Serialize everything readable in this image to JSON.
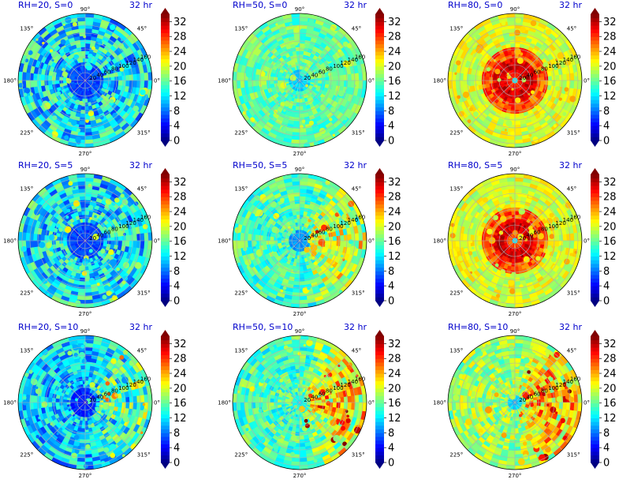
{
  "panels": [
    {
      "title": "RH=20, S=0",
      "time": "32 hr",
      "base": 12,
      "core": 5,
      "coreRadius": 0.15,
      "ringLevel": 0,
      "ringWidth": 0,
      "spread": 6,
      "eastBoost": 0
    },
    {
      "title": "RH=50, S=0",
      "time": "32 hr",
      "base": 16,
      "core": 10,
      "coreRadius": 0.08,
      "ringLevel": 0,
      "ringWidth": 0,
      "spread": 3,
      "eastBoost": 0
    },
    {
      "title": "RH=80, S=0",
      "time": "32 hr",
      "base": 20,
      "core": 12,
      "coreRadius": 0.05,
      "ringLevel": 32,
      "ringWidth": 0.28,
      "spread": 3,
      "eastBoost": 0
    },
    {
      "title": "RH=20, S=5",
      "time": "32 hr",
      "base": 12,
      "core": 5,
      "coreRadius": 0.15,
      "ringLevel": 0,
      "ringWidth": 0,
      "spread": 6,
      "eastBoost": 0
    },
    {
      "title": "RH=50, S=5",
      "time": "32 hr",
      "base": 15,
      "core": 8,
      "coreRadius": 0.08,
      "ringLevel": 0,
      "ringWidth": 0,
      "spread": 4,
      "eastBoost": 8
    },
    {
      "title": "RH=80, S=5",
      "time": "32 hr",
      "base": 20,
      "core": 12,
      "coreRadius": 0.05,
      "ringLevel": 32,
      "ringWidth": 0.26,
      "spread": 3,
      "eastBoost": 0
    },
    {
      "title": "RH=20, S=10",
      "time": "32 hr",
      "base": 11,
      "core": 4,
      "coreRadius": 0.12,
      "ringLevel": 0,
      "ringWidth": 0,
      "spread": 5,
      "eastBoost": 7
    },
    {
      "title": "RH=50, S=10",
      "time": "32 hr",
      "base": 15,
      "core": 12,
      "coreRadius": 0.06,
      "ringLevel": 0,
      "ringWidth": 0,
      "spread": 4,
      "eastBoost": 12
    },
    {
      "title": "RH=80, S=10",
      "time": "32 hr",
      "base": 18,
      "core": 10,
      "coreRadius": 0.05,
      "ringLevel": 0,
      "ringWidth": 0,
      "spread": 4,
      "eastBoost": 9
    }
  ],
  "polar": {
    "angle_labels": [
      "0°",
      "45°",
      "90°",
      "135°",
      "180°",
      "225°",
      "270°",
      "315°"
    ],
    "radial_labels": [
      "20",
      "40",
      "60",
      "80",
      "100",
      "120",
      "140",
      "160"
    ]
  },
  "colorbar": {
    "ticks": [
      "0",
      "4",
      "8",
      "12",
      "16",
      "20",
      "24",
      "28",
      "32"
    ],
    "min": 0,
    "max": 34,
    "colormap": "jet"
  },
  "chart_data": {
    "type": "heatmap",
    "projection": "polar",
    "layout": "3x3 grid",
    "rows": [
      "S=0",
      "S=5",
      "S=10"
    ],
    "columns": [
      "RH=20",
      "RH=50",
      "RH=80"
    ],
    "rlim": [
      0,
      170
    ],
    "color_range": [
      0,
      34
    ],
    "grid": true
  }
}
